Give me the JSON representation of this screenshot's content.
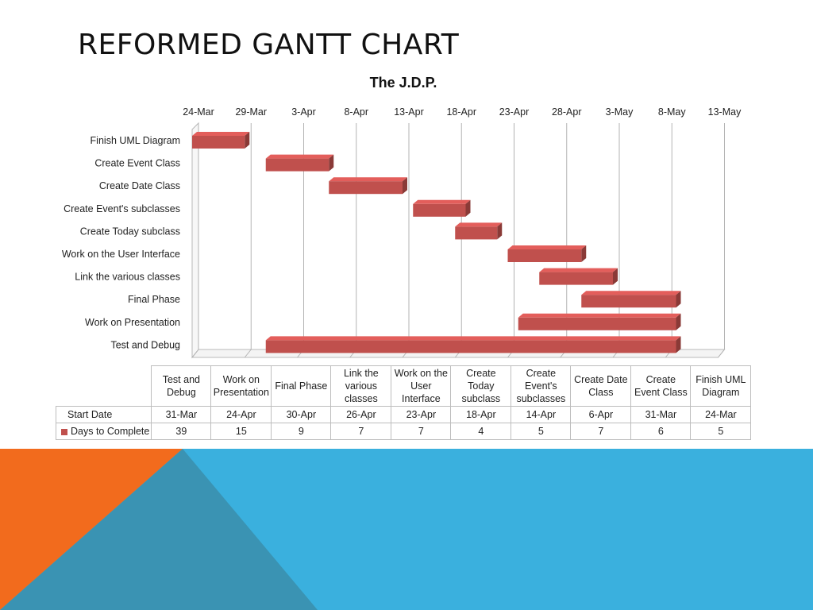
{
  "slide": {
    "title": "REFORMED GANTT CHART"
  },
  "chart_data": {
    "type": "bar",
    "orientation": "horizontal-stacked-gantt",
    "title": "The J.D.P.",
    "xlabel": "",
    "ylabel": "",
    "x_axis_position": "top",
    "x_tick_labels": [
      "24-Mar",
      "29-Mar",
      "3-Apr",
      "8-Apr",
      "13-Apr",
      "18-Apr",
      "23-Apr",
      "28-Apr",
      "3-May",
      "8-May",
      "13-May"
    ],
    "xlim": [
      "24-Mar",
      "13-May"
    ],
    "grid": true,
    "bar_color": "#c0504d",
    "categories": [
      "Finish UML Diagram",
      "Create Event Class",
      "Create Date Class",
      "Create Event's subclasses",
      "Create Today subclass",
      "Work on the User Interface",
      "Link the various classes",
      "Final Phase",
      "Work on Presentation",
      "Test and Debug"
    ],
    "series": [
      {
        "name": "Start Date",
        "hidden": true,
        "values": [
          "24-Mar",
          "31-Mar",
          "6-Apr",
          "14-Apr",
          "18-Apr",
          "23-Apr",
          "26-Apr",
          "30-Apr",
          "24-Apr",
          "31-Mar"
        ]
      },
      {
        "name": "Days to Complete",
        "values": [
          5,
          6,
          7,
          5,
          4,
          7,
          7,
          9,
          15,
          39
        ]
      }
    ],
    "table": {
      "columns": [
        "Test and Debug",
        "Work on Presentation",
        "Final Phase",
        "Link the various classes",
        "Work on the User Interface",
        "Create Today subclass",
        "Create Event's subclasses",
        "Create Date Class",
        "Create Event Class",
        "Finish UML Diagram"
      ],
      "rows": [
        {
          "label": "Start Date",
          "values": [
            "31-Mar",
            "24-Apr",
            "30-Apr",
            "26-Apr",
            "23-Apr",
            "18-Apr",
            "14-Apr",
            "6-Apr",
            "31-Mar",
            "24-Mar"
          ]
        },
        {
          "label": "Days to Complete",
          "values": [
            "39",
            "15",
            "9",
            "7",
            "7",
            "4",
            "5",
            "7",
            "6",
            "5"
          ]
        }
      ]
    }
  },
  "theme": {
    "orange": "#f26b1d",
    "teal": "#3a93b3",
    "sky": "#3ab0de"
  }
}
